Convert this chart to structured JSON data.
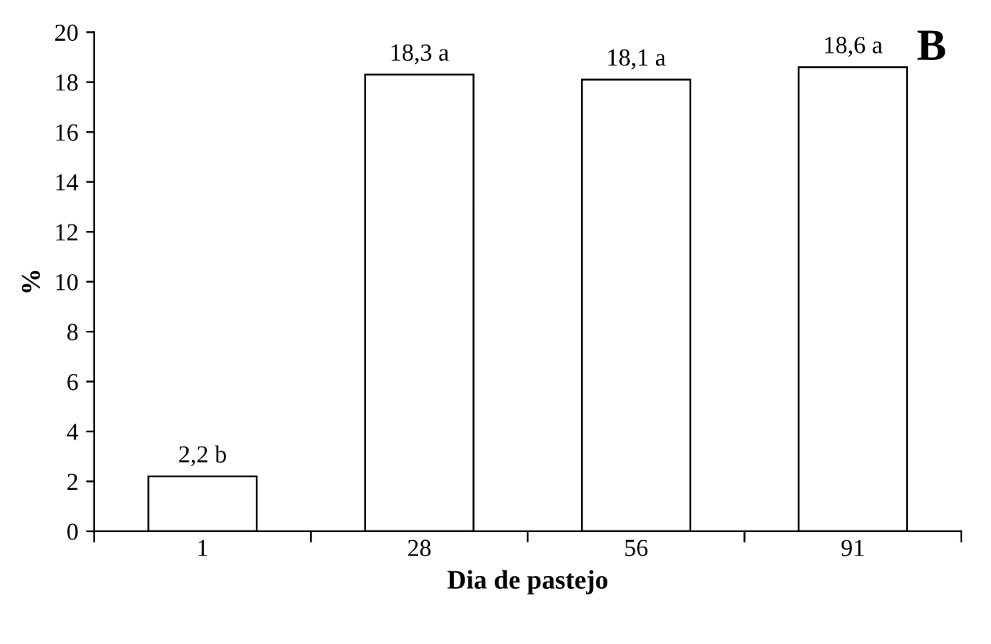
{
  "chart_data": {
    "type": "bar",
    "xlabel": "Dia de pastejo",
    "ylabel": "%",
    "categories": [
      "1",
      "28",
      "56",
      "91"
    ],
    "values": [
      2.2,
      18.3,
      18.1,
      18.6
    ],
    "value_labels": [
      "2,2 b",
      "18,3 a",
      "18,1 a",
      "18,6 a"
    ],
    "color": "#ffffff",
    "ylim": [
      0,
      20
    ],
    "yticks": [
      0,
      2,
      4,
      6,
      8,
      10,
      12,
      14,
      16,
      18,
      20
    ],
    "annotations": [
      "B"
    ],
    "grid": false,
    "legend": false
  }
}
